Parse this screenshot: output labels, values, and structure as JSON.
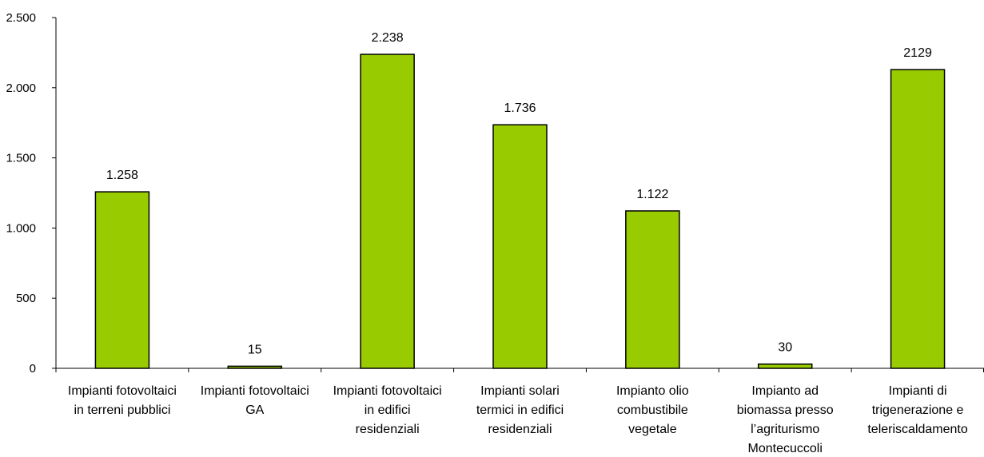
{
  "chart_data": {
    "type": "bar",
    "categories": [
      [
        "Impianti fotovoltaici",
        "in terreni pubblici"
      ],
      [
        "Impianti fotovoltaici",
        "GA"
      ],
      [
        "Impianti fotovoltaici",
        "in edifici",
        "residenziali"
      ],
      [
        "Impianti solari",
        "termici in edifici",
        "residenziali"
      ],
      [
        "Impianto olio",
        "combustibile",
        "vegetale"
      ],
      [
        "Impianto ad",
        "biomassa presso",
        "l’agriturismo",
        "Montecuccoli"
      ],
      [
        "Impianti di",
        "trigenerazione e",
        "teleriscaldamento"
      ]
    ],
    "values": [
      1258,
      15,
      2238,
      1736,
      1122,
      30,
      2129
    ],
    "data_labels": [
      "1.258",
      "15",
      "2.238",
      "1.736",
      "1.122",
      "30",
      "2129"
    ],
    "yticks": [
      0,
      500,
      1000,
      1500,
      2000,
      2500
    ],
    "ytick_labels": [
      "0",
      "500",
      "1.000",
      "1.500",
      "2.000",
      "2.500"
    ],
    "ylim": [
      0,
      2500
    ],
    "title": "",
    "xlabel": "",
    "ylabel": "",
    "grid": false,
    "legend": "none",
    "bar_color": "#99cc00",
    "bar_edge_color": "#000000"
  }
}
